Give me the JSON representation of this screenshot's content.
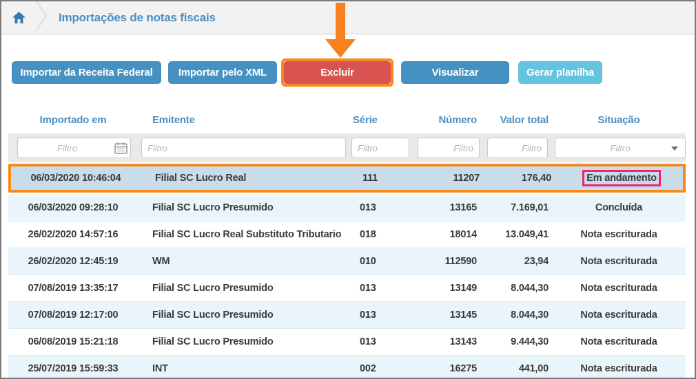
{
  "breadcrumb": {
    "title": "Importações de notas fiscais"
  },
  "toolbar": {
    "buttons": [
      {
        "label": "Importar da Receita Federal",
        "style": "blue"
      },
      {
        "label": "Importar pelo XML",
        "style": "blue"
      },
      {
        "label": "Excluir",
        "style": "red",
        "highlighted": true
      },
      {
        "label": "Visualizar",
        "style": "blue"
      },
      {
        "label": "Gerar planilha",
        "style": "cyan"
      }
    ]
  },
  "table": {
    "columns": [
      {
        "key": "imported",
        "label": "Importado em",
        "align": "center"
      },
      {
        "key": "emitente",
        "label": "Emitente",
        "align": "left"
      },
      {
        "key": "serie",
        "label": "Série",
        "align": "left"
      },
      {
        "key": "numero",
        "label": "Número",
        "align": "right"
      },
      {
        "key": "valor",
        "label": "Valor total",
        "align": "right"
      },
      {
        "key": "situacao",
        "label": "Situação",
        "align": "center"
      }
    ],
    "filter_placeholder": "Filtro",
    "rows": [
      {
        "imported": "06/03/2020 10:46:04",
        "emitente": "Filial SC Lucro Real",
        "serie": "111",
        "numero": "11207",
        "valor": "176,40",
        "situacao": "Em andamento",
        "selected": true,
        "status_boxed": true
      },
      {
        "imported": "06/03/2020 09:28:10",
        "emitente": "Filial SC Lucro Presumido",
        "serie": "013",
        "numero": "13165",
        "valor": "7.169,01",
        "situacao": "Concluída"
      },
      {
        "imported": "26/02/2020 14:57:16",
        "emitente": "Filial SC Lucro Real Substituto Tributario",
        "serie": "018",
        "numero": "18014",
        "valor": "13.049,41",
        "situacao": "Nota escriturada"
      },
      {
        "imported": "26/02/2020 12:45:19",
        "emitente": "WM",
        "serie": "010",
        "numero": "112590",
        "valor": "23,94",
        "situacao": "Nota escriturada"
      },
      {
        "imported": "07/08/2019 13:35:17",
        "emitente": "Filial SC Lucro Presumido",
        "serie": "013",
        "numero": "13149",
        "valor": "8.044,30",
        "situacao": "Nota escriturada"
      },
      {
        "imported": "07/08/2019 12:17:00",
        "emitente": "Filial SC Lucro Presumido",
        "serie": "013",
        "numero": "13145",
        "valor": "8.044,30",
        "situacao": "Nota escriturada"
      },
      {
        "imported": "06/08/2019 15:21:18",
        "emitente": "Filial SC Lucro Presumido",
        "serie": "013",
        "numero": "13143",
        "valor": "9.444,30",
        "situacao": "Nota escriturada"
      },
      {
        "imported": "25/07/2019 15:59:33",
        "emitente": "INT",
        "serie": "002",
        "numero": "16275",
        "valor": "441,00",
        "situacao": "Nota escriturada"
      }
    ]
  },
  "colors": {
    "accent_blue": "#4a8fc4",
    "button_blue": "#4491c2",
    "button_cyan": "#62c4de",
    "button_red": "#d95350",
    "annotation_orange": "#f68a1c",
    "annotation_pink": "#f0256d",
    "selected_row_bg": "#c8dcea",
    "alt_row_bg": "#eaf4fb",
    "topbar_bg": "#f2f2f2"
  }
}
